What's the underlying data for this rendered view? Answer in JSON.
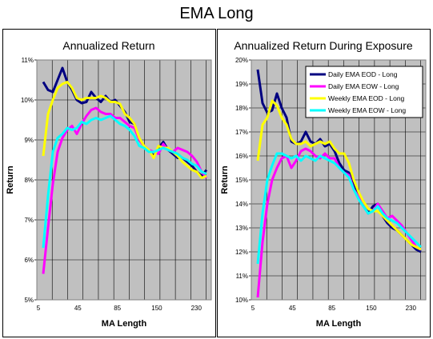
{
  "title": "EMA Long",
  "chart_data": [
    {
      "type": "line",
      "title": "Annualized Return",
      "xlabel": "MA Length",
      "ylabel": "Return",
      "xlim": [
        5,
        245
      ],
      "ylim": [
        5,
        11
      ],
      "x_ticks": [
        "5",
        "45",
        "85",
        "150",
        "230"
      ],
      "y_ticks": [
        "5%",
        "6%",
        "7%",
        "8%",
        "9%",
        "10%",
        "11%"
      ],
      "grid": true,
      "legend": null,
      "x": [
        5,
        10,
        15,
        20,
        25,
        30,
        35,
        40,
        45,
        50,
        55,
        60,
        65,
        70,
        75,
        80,
        85,
        90,
        95,
        100,
        110,
        120,
        130,
        140,
        150,
        160,
        170,
        180,
        190,
        200,
        210,
        220,
        230,
        240,
        245
      ],
      "series": [
        {
          "name": "Daily EMA EOD - Long",
          "color": "#000080",
          "values": [
            10.45,
            10.25,
            10.2,
            10.5,
            10.8,
            10.45,
            10.25,
            10.0,
            9.92,
            9.95,
            10.2,
            10.05,
            9.95,
            10.1,
            9.95,
            10.0,
            9.85,
            9.7,
            9.45,
            9.4,
            9.0,
            8.85,
            8.75,
            8.6,
            8.8,
            8.95,
            8.75,
            8.65,
            8.55,
            8.55,
            8.45,
            8.35,
            8.2,
            8.1,
            8.25
          ]
        },
        {
          "name": "Daily EMA EOW - Long",
          "color": "#ff00ff",
          "values": [
            5.65,
            6.8,
            7.9,
            8.7,
            9.05,
            9.25,
            9.35,
            9.15,
            9.4,
            9.6,
            9.75,
            9.8,
            9.7,
            9.65,
            9.65,
            9.55,
            9.55,
            9.45,
            9.35,
            9.3,
            9.0,
            8.85,
            8.75,
            8.7,
            8.65,
            8.9,
            8.75,
            8.7,
            8.8,
            8.75,
            8.7,
            8.6,
            8.45,
            8.2,
            8.05
          ]
        },
        {
          "name": "Weekly EMA EOD - Long",
          "color": "#ffff00",
          "values": [
            8.6,
            9.65,
            10.0,
            10.3,
            10.4,
            10.45,
            10.3,
            10.05,
            10.0,
            10.05,
            10.05,
            10.05,
            10.1,
            10.05,
            9.95,
            9.95,
            9.9,
            9.65,
            9.55,
            9.4,
            9.05,
            8.85,
            8.75,
            8.55,
            8.85,
            8.8,
            8.8,
            8.7,
            8.6,
            8.45,
            8.35,
            8.25,
            8.2,
            8.05,
            8.1
          ]
        },
        {
          "name": "Weekly EMA EOW - Long",
          "color": "#00ffff",
          "values": [
            6.3,
            7.6,
            8.7,
            9.05,
            9.15,
            9.3,
            9.25,
            9.3,
            9.45,
            9.4,
            9.5,
            9.55,
            9.5,
            9.55,
            9.6,
            9.5,
            9.4,
            9.35,
            9.25,
            9.1,
            8.85,
            8.8,
            8.7,
            8.7,
            8.75,
            8.8,
            8.75,
            8.7,
            8.65,
            8.55,
            8.5,
            8.4,
            8.35,
            8.2,
            8.15
          ]
        }
      ]
    },
    {
      "type": "line",
      "title": "Annualized Return During Exposure",
      "xlabel": "MA Length",
      "ylabel": "Return",
      "xlim": [
        5,
        245
      ],
      "ylim": [
        10,
        20
      ],
      "x_ticks": [
        "5",
        "45",
        "85",
        "150",
        "230"
      ],
      "y_ticks": [
        "10%",
        "11%",
        "12%",
        "13%",
        "14%",
        "15%",
        "16%",
        "17%",
        "18%",
        "19%",
        "20%"
      ],
      "grid": true,
      "legend": "top-right",
      "x": [
        5,
        10,
        15,
        20,
        25,
        30,
        35,
        40,
        45,
        50,
        55,
        60,
        65,
        70,
        75,
        80,
        85,
        90,
        95,
        100,
        110,
        120,
        130,
        140,
        150,
        160,
        170,
        180,
        190,
        200,
        210,
        220,
        230,
        240,
        245
      ],
      "series": [
        {
          "name": "Daily EMA EOD - Long",
          "color": "#000080",
          "values": [
            19.6,
            18.2,
            17.8,
            17.9,
            18.6,
            18.0,
            17.6,
            16.6,
            16.5,
            16.6,
            17.0,
            16.6,
            16.5,
            16.7,
            16.4,
            16.5,
            16.2,
            15.7,
            15.4,
            15.3,
            14.8,
            14.4,
            14.1,
            13.6,
            13.9,
            14.0,
            13.5,
            13.2,
            13.0,
            12.9,
            12.7,
            12.5,
            12.3,
            12.1,
            12.0
          ]
        },
        {
          "name": "Daily EMA EOW - Long",
          "color": "#ff00ff",
          "values": [
            10.1,
            12.4,
            14.0,
            15.0,
            15.5,
            15.9,
            16.0,
            15.5,
            15.8,
            16.2,
            16.3,
            16.2,
            16.0,
            15.9,
            16.1,
            15.9,
            15.9,
            15.5,
            15.3,
            15.2,
            14.6,
            14.3,
            14.0,
            13.8,
            13.7,
            14.0,
            13.7,
            13.4,
            13.5,
            13.3,
            13.1,
            12.8,
            12.5,
            12.2,
            12.1
          ]
        },
        {
          "name": "Weekly EMA EOD - Long",
          "color": "#ffff00",
          "values": [
            15.8,
            17.3,
            17.6,
            18.3,
            18.1,
            17.6,
            17.3,
            16.7,
            16.5,
            16.5,
            16.6,
            16.4,
            16.5,
            16.6,
            16.5,
            16.6,
            16.3,
            16.1,
            16.1,
            15.7,
            15.0,
            14.5,
            14.1,
            13.8,
            13.7,
            13.7,
            13.5,
            13.3,
            13.1,
            12.9,
            12.7,
            12.5,
            12.3,
            12.2,
            12.1
          ]
        },
        {
          "name": "Weekly EMA EOW - Long",
          "color": "#00ffff",
          "values": [
            11.5,
            13.6,
            15.0,
            15.6,
            16.1,
            16.1,
            16.0,
            15.9,
            16.0,
            15.8,
            16.0,
            15.9,
            15.8,
            16.0,
            15.9,
            15.8,
            15.7,
            15.5,
            15.3,
            15.1,
            14.6,
            14.2,
            13.9,
            13.6,
            13.7,
            13.9,
            13.6,
            13.4,
            13.3,
            13.2,
            13.0,
            12.8,
            12.6,
            12.4,
            12.2
          ]
        }
      ]
    }
  ]
}
